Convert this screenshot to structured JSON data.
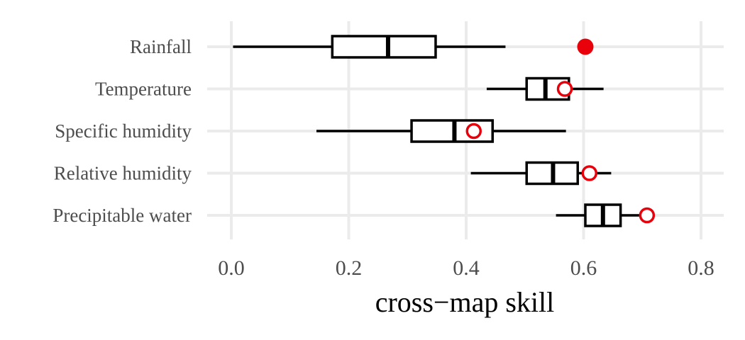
{
  "chart_data": {
    "type": "boxplot",
    "orientation": "horizontal",
    "xlabel": "cross−map skill",
    "xlim": [
      -0.02,
      0.84
    ],
    "xticks": [
      0.0,
      0.2,
      0.4,
      0.6,
      0.8
    ],
    "xtick_labels": [
      "0.0",
      "0.2",
      "0.4",
      "0.6",
      "0.8"
    ],
    "grid": true,
    "categories": [
      "Rainfall",
      "Temperature",
      "Specific humidity",
      "Relative humidity",
      "Precipitable water"
    ],
    "boxes": [
      {
        "category": "Rainfall",
        "whisker_low": 0.003,
        "q1": 0.172,
        "median": 0.267,
        "q3": 0.348,
        "whisker_high": 0.467,
        "observed": 0.603,
        "observed_filled": true
      },
      {
        "category": "Temperature",
        "whisker_low": 0.435,
        "q1": 0.503,
        "median": 0.535,
        "q3": 0.575,
        "whisker_high": 0.634,
        "observed": 0.568,
        "observed_filled": false
      },
      {
        "category": "Specific humidity",
        "whisker_low": 0.145,
        "q1": 0.307,
        "median": 0.38,
        "q3": 0.445,
        "whisker_high": 0.57,
        "observed": 0.413,
        "observed_filled": false
      },
      {
        "category": "Relative humidity",
        "whisker_low": 0.408,
        "q1": 0.503,
        "median": 0.548,
        "q3": 0.59,
        "whisker_high": 0.647,
        "observed": 0.61,
        "observed_filled": false
      },
      {
        "category": "Precipitable water",
        "whisker_low": 0.553,
        "q1": 0.603,
        "median": 0.633,
        "q3": 0.663,
        "whisker_high": 0.695,
        "observed": 0.708,
        "observed_filled": false
      }
    ],
    "colors": {
      "observed": "#e8000b",
      "box": "#000000",
      "grid": "#ebebeb"
    }
  }
}
